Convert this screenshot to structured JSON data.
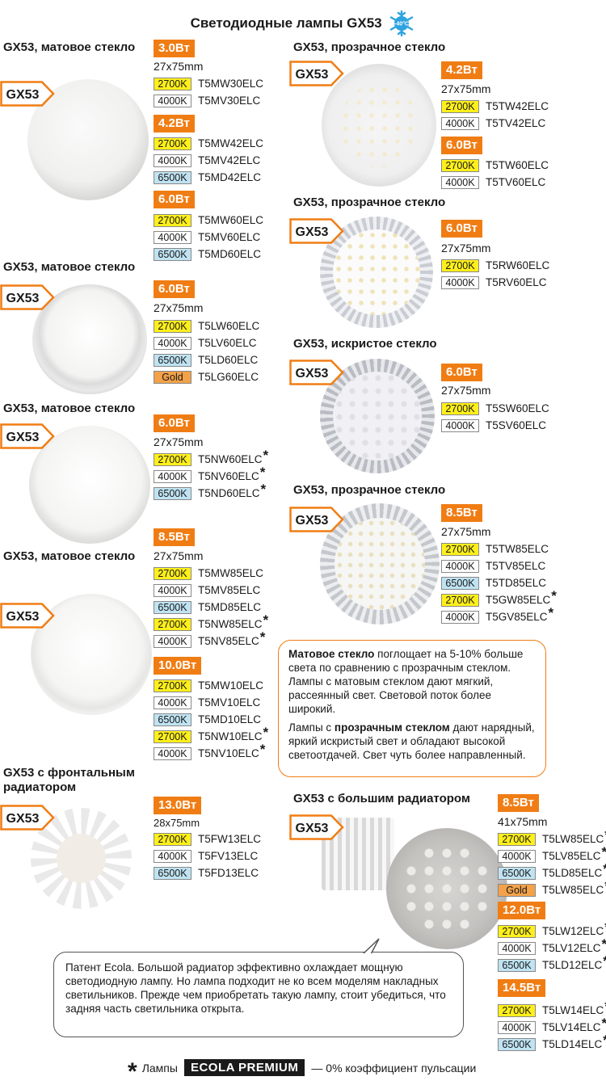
{
  "title": "Светодиодные лампы GX53",
  "snow_temp": "-40°C",
  "badge": "GX53",
  "footer": {
    "star": "*",
    "prefix": "Лампы",
    "brand": "ECOLA PREMIUM",
    "suffix": "— 0% коэффициент пульсации"
  },
  "groups": [
    {
      "title": "GX53, матовое стекло",
      "blocks": [
        {
          "watt": "3.0Вт",
          "dim": "27x75mm",
          "items": [
            {
              "k": "2700K",
              "code": "T5MW30ELC",
              "star": false
            },
            {
              "k": "4000K",
              "code": "T5MV30ELC",
              "star": false
            }
          ]
        },
        {
          "watt": "4.2Вт",
          "items": [
            {
              "k": "2700K",
              "code": "T5MW42ELC",
              "star": false
            },
            {
              "k": "4000K",
              "code": "T5MV42ELC",
              "star": false
            },
            {
              "k": "6500K",
              "code": "T5MD42ELC",
              "star": false
            }
          ]
        },
        {
          "watt": "6.0Вт",
          "items": [
            {
              "k": "2700K",
              "code": "T5MW60ELC",
              "star": false
            },
            {
              "k": "4000K",
              "code": "T5MV60ELC",
              "star": false
            },
            {
              "k": "6500K",
              "code": "T5MD60ELC",
              "star": false
            }
          ]
        }
      ]
    },
    {
      "title": "GX53, матовое стекло",
      "blocks": [
        {
          "watt": "6.0Вт",
          "dim": "27x75mm",
          "items": [
            {
              "k": "2700K",
              "code": "T5LW60ELC",
              "star": false
            },
            {
              "k": "4000K",
              "code": "T5LV60ELC",
              "star": false
            },
            {
              "k": "6500K",
              "code": "T5LD60ELC",
              "star": false
            },
            {
              "k": "Gold",
              "code": "T5LG60ELC",
              "star": false
            }
          ]
        }
      ]
    },
    {
      "title": "GX53, матовое стекло",
      "blocks": [
        {
          "watt": "6.0Вт",
          "dim": "27x75mm",
          "items": [
            {
              "k": "2700K",
              "code": "T5NW60ELC",
              "star": true
            },
            {
              "k": "4000K",
              "code": "T5NV60ELC",
              "star": true
            },
            {
              "k": "6500K",
              "code": "T5ND60ELC",
              "star": true
            }
          ]
        }
      ]
    },
    {
      "title": "GX53, матовое стекло",
      "blocks": [
        {
          "watt": "8.5Вт",
          "dim": "27x75mm",
          "items": [
            {
              "k": "2700K",
              "code": "T5MW85ELC",
              "star": false
            },
            {
              "k": "4000K",
              "code": "T5MV85ELC",
              "star": false
            },
            {
              "k": "6500K",
              "code": "T5MD85ELC",
              "star": false
            },
            {
              "k": "2700K",
              "code": "T5NW85ELC",
              "star": true
            },
            {
              "k": "4000K",
              "code": "T5NV85ELC",
              "star": true
            }
          ]
        },
        {
          "watt": "10.0Вт",
          "items": [
            {
              "k": "2700K",
              "code": "T5MW10ELC",
              "star": false
            },
            {
              "k": "4000K",
              "code": "T5MV10ELC",
              "star": false
            },
            {
              "k": "6500K",
              "code": "T5MD10ELC",
              "star": false
            },
            {
              "k": "2700K",
              "code": "T5NW10ELC",
              "star": true
            },
            {
              "k": "4000K",
              "code": "T5NV10ELC",
              "star": true
            }
          ]
        }
      ]
    },
    {
      "title": "GX53 с фронтальным радиатором",
      "blocks": [
        {
          "watt": "13.0Вт",
          "dim": "28x75mm",
          "items": [
            {
              "k": "2700K",
              "code": "T5FW13ELC",
              "star": false
            },
            {
              "k": "4000K",
              "code": "T5FV13ELC",
              "star": false
            },
            {
              "k": "6500K",
              "code": "T5FD13ELC",
              "star": false
            }
          ]
        }
      ]
    },
    {
      "title": "GX53, прозрачное стекло",
      "blocks": [
        {
          "watt": "4.2Вт",
          "dim": "27x75mm",
          "items": [
            {
              "k": "2700K",
              "code": "T5TW42ELC",
              "star": false
            },
            {
              "k": "4000K",
              "code": "T5TV42ELC",
              "star": false
            }
          ]
        },
        {
          "watt": "6.0Вт",
          "items": [
            {
              "k": "2700K",
              "code": "T5TW60ELC",
              "star": false
            },
            {
              "k": "4000K",
              "code": "T5TV60ELC",
              "star": false
            }
          ]
        }
      ]
    },
    {
      "title": "GX53, прозрачное стекло",
      "blocks": [
        {
          "watt": "6.0Вт",
          "dim": "27x75mm",
          "items": [
            {
              "k": "2700K",
              "code": "T5RW60ELC",
              "star": false
            },
            {
              "k": "4000K",
              "code": "T5RV60ELC",
              "star": false
            }
          ]
        }
      ]
    },
    {
      "title": "GX53, искристое стекло",
      "blocks": [
        {
          "watt": "6.0Вт",
          "dim": "27x75mm",
          "items": [
            {
              "k": "2700K",
              "code": "T5SW60ELC",
              "star": false
            },
            {
              "k": "4000K",
              "code": "T5SV60ELC",
              "star": false
            }
          ]
        }
      ]
    },
    {
      "title": "GX53, прозрачное стекло",
      "blocks": [
        {
          "watt": "8.5Вт",
          "dim": "27x75mm",
          "items": [
            {
              "k": "2700K",
              "code": "T5TW85ELC",
              "star": false
            },
            {
              "k": "4000K",
              "code": "T5TV85ELC",
              "star": false
            },
            {
              "k": "6500K",
              "code": "T5TD85ELC",
              "star": false
            },
            {
              "k": "2700K",
              "code": "T5GW85ELC",
              "star": true
            },
            {
              "k": "4000K",
              "code": "T5GV85ELC",
              "star": true
            }
          ]
        }
      ]
    },
    {
      "title": "GX53 с большим радиатором",
      "blocks": [
        {
          "watt": "8.5Вт",
          "dim": "41x75mm",
          "items": [
            {
              "k": "2700K",
              "code": "T5LW85ELC",
              "star": true
            },
            {
              "k": "4000K",
              "code": "T5LV85ELC",
              "star": true
            },
            {
              "k": "6500K",
              "code": "T5LD85ELC",
              "star": true
            },
            {
              "k": "Gold",
              "code": "T5LW85ELC",
              "star": true
            }
          ]
        },
        {
          "watt": "12.0Вт",
          "items": [
            {
              "k": "2700K",
              "code": "T5LW12ELC",
              "star": true
            },
            {
              "k": "4000K",
              "code": "T5LV12ELC",
              "star": true
            },
            {
              "k": "6500K",
              "code": "T5LD12ELC",
              "star": true
            }
          ]
        },
        {
          "watt": "14.5Вт",
          "items": [
            {
              "k": "2700K",
              "code": "T5LW14ELC",
              "star": true
            },
            {
              "k": "4000K",
              "code": "T5LV14ELC",
              "star": true
            },
            {
              "k": "6500K",
              "code": "T5LD14ELC",
              "star": true
            }
          ]
        }
      ]
    }
  ],
  "note": {
    "p1_bold": "Матовое стекло",
    "p1_rest": " поглощает на 5-10% больше света по сравнению с прозрачным стеклом. Лампы с матовым стеклом дают мягкий, рассеянный свет. Световой поток более широкий.",
    "p2_pre": "Лампы с ",
    "p2_bold": "прозрачным стеклом",
    "p2_rest": " дают нарядный, яркий искристый свет и обладают высокой светоотдачей. Свет чуть более направленный."
  },
  "bubble": "Патент Ecola. Большой радиатор эффективно охлаждает мощную светодиодную лампу. Но лампа подходит не ко всем моделям накладных светильников. Прежде чем приобретать такую лампу, стоит убедиться, что задняя часть светильника открыта.",
  "colors": {
    "accent": "#f07d14",
    "k2700": "#ffef1a",
    "k6500": "#bfe3f2",
    "gold": "#f3a24a"
  }
}
